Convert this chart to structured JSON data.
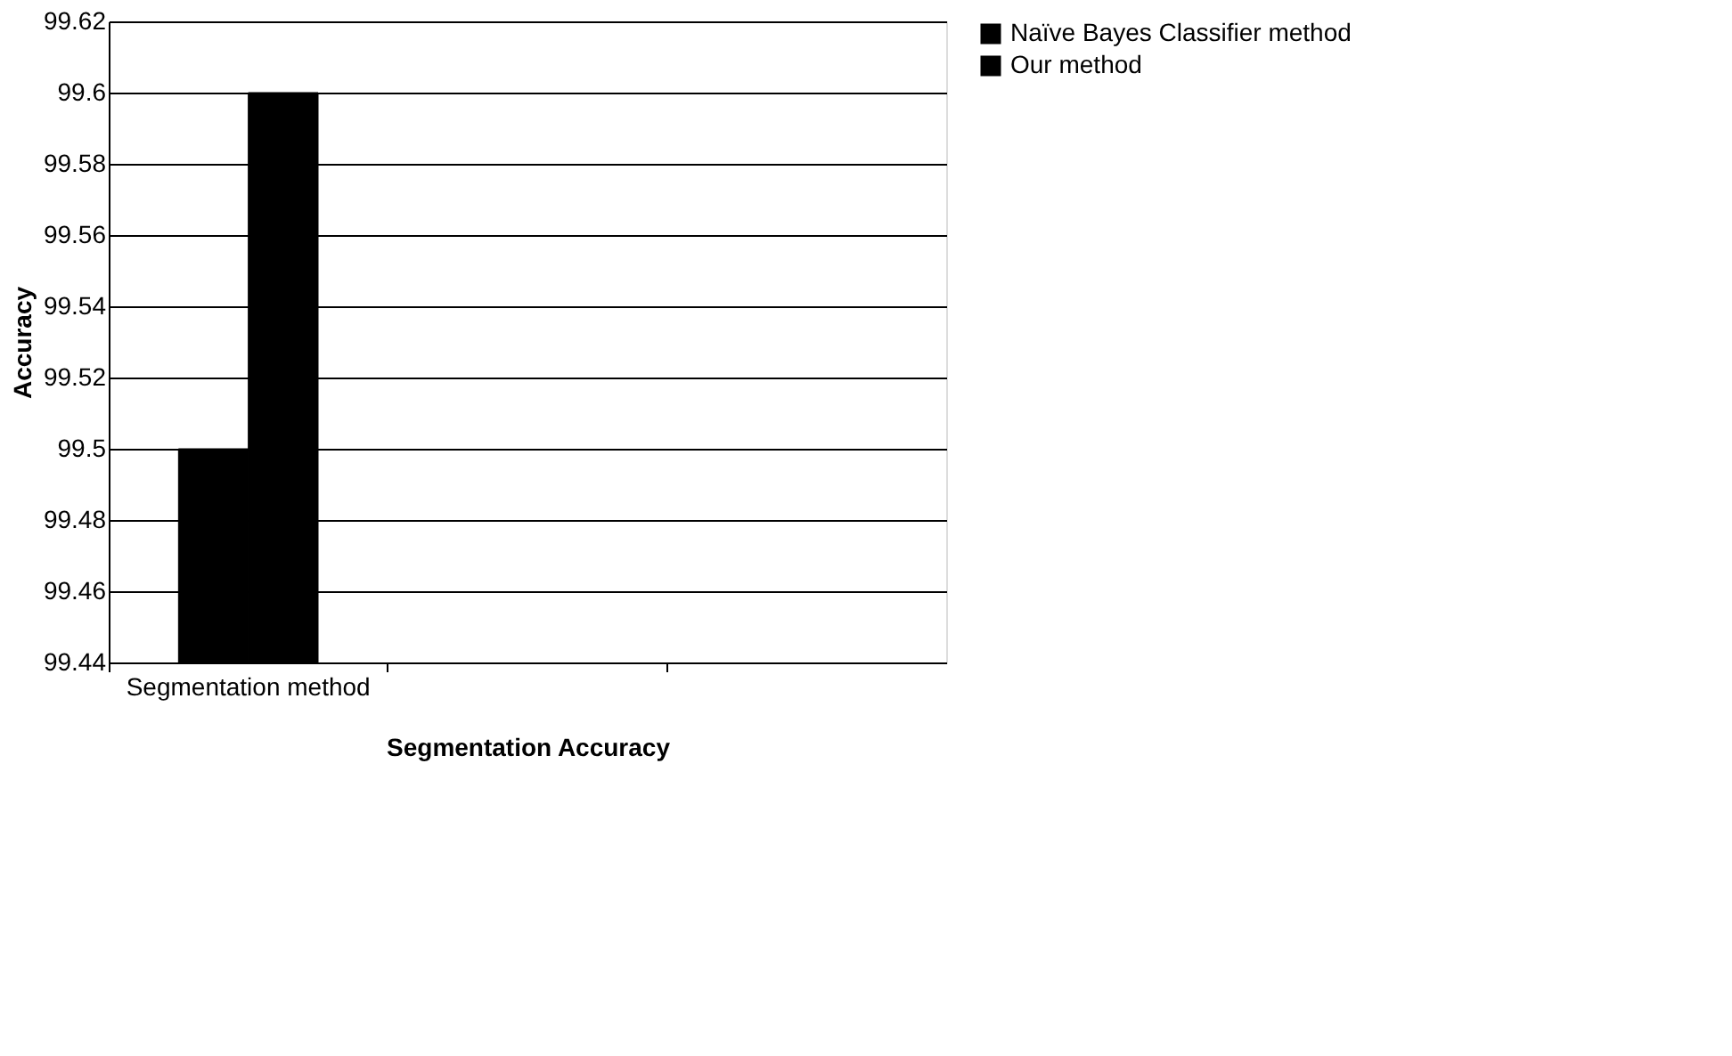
{
  "chart_data": {
    "type": "bar",
    "xlabel": "Segmentation Accuracy",
    "ylabel": "Accuracy",
    "categories": [
      "Segmentation method",
      null,
      null
    ],
    "series": [
      {
        "name": "Naïve Bayes Classifier method",
        "color": "#000000",
        "values": [
          99.5,
          null,
          null
        ]
      },
      {
        "name": "Our method",
        "color": "#000000",
        "values": [
          99.6,
          null,
          null
        ]
      }
    ],
    "ylim": [
      99.44,
      99.62
    ],
    "yticks": [
      99.44,
      99.46,
      99.48,
      99.5,
      99.52,
      99.54,
      99.56,
      99.58,
      99.6,
      99.62
    ],
    "grid": "y",
    "legend": "right"
  }
}
